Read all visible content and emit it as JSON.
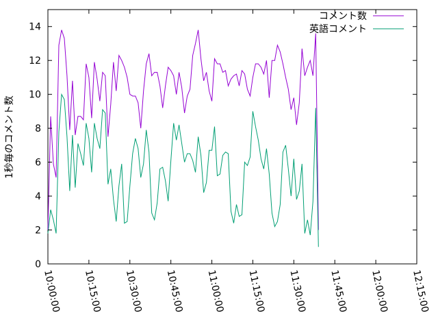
{
  "chart_data": {
    "type": "line",
    "ylabel": "1秒毎のコメント数",
    "xlabel": "",
    "ylim": [
      0,
      15
    ],
    "xlim": [
      "10:00:00",
      "12:15:00"
    ],
    "x_ticks": [
      "10:00:00",
      "10:15:00",
      "10:30:00",
      "10:45:00",
      "11:00:00",
      "11:15:00",
      "11:30:00",
      "11:45:00",
      "12:00:00",
      "12:15:00"
    ],
    "y_ticks": [
      0,
      2,
      4,
      6,
      8,
      10,
      12,
      14
    ],
    "legend_position": "top-right",
    "grid": false,
    "sample_interval_minutes": 1,
    "series": [
      {
        "name": "コメント数",
        "color": "#9400d3",
        "x_start": "10:00:00",
        "values": [
          2.0,
          8.7,
          5.9,
          5.1,
          12.9,
          13.8,
          13.3,
          11.1,
          7.9,
          10.8,
          7.6,
          8.7,
          8.7,
          8.5,
          11.8,
          11.0,
          8.6,
          11.9,
          10.9,
          9.6,
          11.3,
          11.1,
          7.5,
          9.4,
          11.9,
          10.2,
          12.3,
          12.0,
          11.6,
          11.0,
          10.0,
          9.9,
          9.9,
          9.5,
          8.0,
          10.2,
          11.8,
          12.4,
          11.1,
          11.3,
          11.3,
          10.5,
          9.2,
          10.5,
          11.6,
          11.4,
          11.1,
          10.0,
          11.3,
          10.4,
          8.9,
          9.9,
          10.3,
          12.3,
          13.0,
          13.8,
          12.1,
          10.8,
          11.3,
          10.2,
          9.6,
          12.1,
          11.8,
          11.8,
          11.3,
          11.4,
          10.5,
          10.9,
          11.1,
          11.2,
          10.5,
          11.4,
          11.2,
          10.3,
          9.9,
          11.0,
          11.8,
          11.8,
          11.6,
          11.2,
          12.0,
          9.8,
          12.0,
          12.0,
          12.9,
          12.5,
          11.8,
          11.0,
          10.3,
          9.1,
          9.8,
          8.2,
          9.5,
          12.7,
          11.1,
          11.6,
          12.0,
          11.1,
          13.6,
          2.0
        ]
      },
      {
        "name": "英語コメント",
        "color": "#009e73",
        "x_start": "10:00:00",
        "values": [
          1.8,
          3.2,
          2.6,
          1.8,
          7.8,
          10.0,
          9.7,
          7.5,
          4.3,
          7.6,
          4.5,
          7.1,
          6.5,
          5.8,
          8.3,
          7.4,
          5.4,
          8.3,
          7.4,
          6.8,
          9.1,
          8.9,
          4.7,
          5.6,
          3.8,
          2.5,
          4.6,
          5.9,
          2.4,
          2.5,
          4.6,
          6.5,
          7.4,
          6.8,
          5.1,
          5.9,
          7.9,
          6.6,
          3.0,
          2.6,
          3.6,
          5.6,
          5.7,
          4.9,
          3.7,
          6.1,
          8.3,
          7.3,
          8.2,
          7.1,
          6.0,
          6.5,
          6.5,
          6.1,
          5.4,
          7.5,
          6.4,
          4.2,
          4.8,
          6.7,
          6.7,
          8.1,
          5.2,
          5.3,
          6.4,
          6.6,
          6.5,
          3.1,
          2.4,
          3.5,
          2.8,
          2.9,
          6.0,
          5.8,
          6.3,
          9.0,
          8.1,
          7.3,
          6.2,
          5.6,
          6.8,
          5.3,
          3.0,
          2.2,
          2.5,
          3.5,
          6.6,
          7.0,
          5.6,
          4.0,
          6.2,
          3.8,
          4.3,
          5.9,
          1.8,
          2.6,
          1.7,
          3.7,
          9.2,
          1.0
        ]
      }
    ]
  }
}
